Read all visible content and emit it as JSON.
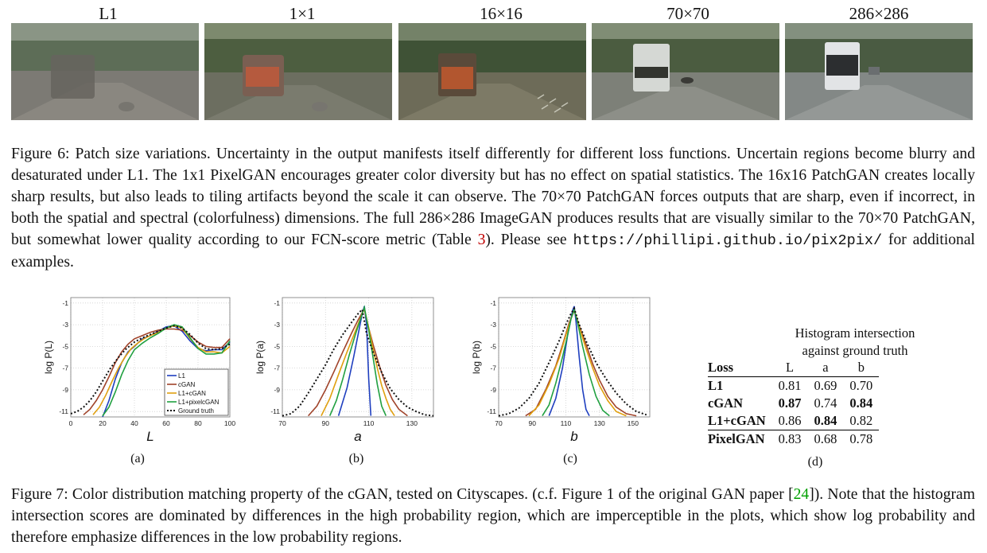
{
  "figure6": {
    "panels": [
      {
        "label": "L1",
        "tone": "#7c7a74"
      },
      {
        "label": "1×1",
        "tone": "#6c6e60"
      },
      {
        "label": "16×16",
        "tone": "#6d6b58"
      },
      {
        "label": "70×70",
        "tone": "#7d8078"
      },
      {
        "label": "286×286",
        "tone": "#838886"
      }
    ],
    "caption_main": "Figure 6: Patch size variations. Uncertainty in the output manifests itself differently for different loss functions. Uncertain regions become blurry and desaturated under L1. The 1x1 PixelGAN encourages greater color diversity but has no effect on spatial statistics. The 16x16 PatchGAN creates locally sharp results, but also leads to tiling artifacts beyond the scale it can observe. The 70×70 PatchGAN forces outputs that are sharp, even if incorrect, in both the spatial and spectral (colorfulness) dimensions. The full 286×286 ImageGAN produces results that are visually similar to the 70×70 PatchGAN, but somewhat lower quality according to our FCN-score metric (Table ",
    "caption_ref": "3",
    "caption_after_ref": "). Please see ",
    "caption_url": "https://phillipi.github.io/pix2pix/",
    "caption_end": " for additional examples."
  },
  "chart_data": [
    {
      "type": "line",
      "id": "a",
      "xlabel": "L",
      "ylabel": "log P(L)",
      "sublabel": "(a)",
      "xlim": [
        0,
        100
      ],
      "ylim": [
        -11.5,
        -0.5
      ],
      "xticks": [
        0,
        20,
        40,
        60,
        80,
        100
      ],
      "yticks": [
        -1,
        -3,
        -5,
        -7,
        -9,
        -11
      ],
      "legend": [
        "L1",
        "cGAN",
        "L1+cGAN",
        "L1+pixelcGAN",
        "Ground truth"
      ],
      "series": [
        {
          "name": "L1",
          "color": "#1f3fbf",
          "x": [
            20,
            24,
            28,
            32,
            36,
            40,
            45,
            50,
            55,
            60,
            65,
            70,
            75,
            80,
            85,
            90,
            95,
            100
          ],
          "y": [
            -11.5,
            -10,
            -8,
            -6.5,
            -5.5,
            -5,
            -4.3,
            -4,
            -3.6,
            -3.2,
            -3.1,
            -3.6,
            -4.5,
            -5.2,
            -5.4,
            -5.3,
            -5.3,
            -4.6
          ]
        },
        {
          "name": "cGAN",
          "color": "#a0432a",
          "x": [
            8,
            12,
            16,
            20,
            24,
            28,
            32,
            36,
            40,
            45,
            50,
            55,
            60,
            65,
            70,
            75,
            80,
            85,
            90,
            95,
            100
          ],
          "y": [
            -11.3,
            -10.8,
            -10,
            -9,
            -7.8,
            -6.5,
            -5.5,
            -4.8,
            -4.3,
            -4,
            -3.7,
            -3.5,
            -3.4,
            -3.4,
            -3.5,
            -4,
            -4.6,
            -5,
            -5.1,
            -5.1,
            -4.3
          ]
        },
        {
          "name": "L1+cGAN",
          "color": "#e0a010",
          "x": [
            14,
            18,
            22,
            26,
            30,
            34,
            38,
            42,
            46,
            50,
            55,
            60,
            65,
            70,
            75,
            80,
            85,
            90,
            95,
            100
          ],
          "y": [
            -11.3,
            -10.6,
            -9.5,
            -8.2,
            -7,
            -6,
            -5.2,
            -4.7,
            -4.3,
            -4,
            -3.7,
            -3.3,
            -3.1,
            -3.3,
            -4.3,
            -5.1,
            -5.5,
            -5.5,
            -5.6,
            -5
          ]
        },
        {
          "name": "L1+pixelcGAN",
          "color": "#20a040",
          "x": [
            20,
            24,
            28,
            32,
            36,
            40,
            45,
            50,
            55,
            60,
            65,
            70,
            75,
            80,
            85,
            90,
            95,
            100
          ],
          "y": [
            -11.4,
            -10.6,
            -9.2,
            -7.6,
            -6.3,
            -5.3,
            -4.7,
            -4.2,
            -3.8,
            -3.3,
            -3,
            -3.2,
            -4.2,
            -5.2,
            -5.7,
            -5.7,
            -5.6,
            -4.5
          ]
        },
        {
          "name": "Ground truth",
          "color": "#111111",
          "dashed": true,
          "x": [
            0,
            4,
            8,
            12,
            16,
            20,
            25,
            30,
            35,
            40,
            45,
            50,
            55,
            60,
            65,
            70,
            75,
            80,
            85,
            90,
            95,
            100
          ],
          "y": [
            -11.2,
            -11,
            -10.6,
            -10,
            -9.2,
            -8.2,
            -7,
            -6,
            -5.2,
            -4.6,
            -4.2,
            -3.9,
            -3.6,
            -3.3,
            -3.1,
            -3.3,
            -3.9,
            -4.7,
            -5.2,
            -5.3,
            -5.2,
            -4.8
          ]
        }
      ]
    },
    {
      "type": "line",
      "id": "b",
      "xlabel": "a",
      "ylabel": "log P(a)",
      "sublabel": "(b)",
      "xlim": [
        70,
        140
      ],
      "ylim": [
        -11.5,
        -0.5
      ],
      "xticks": [
        70,
        90,
        110,
        130
      ],
      "yticks": [
        -1,
        -3,
        -5,
        -7,
        -9,
        -11
      ],
      "series": [
        {
          "name": "L1",
          "color": "#1f3fbf",
          "x": [
            96,
            100,
            103,
            105,
            106,
            107,
            108,
            109,
            110,
            111
          ],
          "y": [
            -11.4,
            -8.8,
            -6,
            -4,
            -3,
            -2,
            -1.3,
            -3,
            -8,
            -11.4
          ]
        },
        {
          "name": "cGAN",
          "color": "#a0432a",
          "x": [
            82,
            86,
            90,
            94,
            98,
            102,
            105,
            107,
            108,
            110,
            112,
            115,
            118,
            121,
            124,
            128
          ],
          "y": [
            -11.4,
            -10.5,
            -9,
            -7.3,
            -5.5,
            -3.8,
            -2.6,
            -1.9,
            -1.6,
            -3.3,
            -4.8,
            -6.8,
            -8.6,
            -9.9,
            -10.8,
            -11.4
          ]
        },
        {
          "name": "L1+cGAN",
          "color": "#e0a010",
          "x": [
            88,
            92,
            96,
            100,
            103,
            106,
            108,
            110,
            112,
            114,
            116,
            118,
            120,
            122
          ],
          "y": [
            -11.4,
            -9.8,
            -7.6,
            -5.5,
            -4,
            -2.5,
            -1.5,
            -3.3,
            -5.2,
            -7,
            -8.6,
            -9.8,
            -10.8,
            -11.4
          ]
        },
        {
          "name": "L1+pixelcGAN",
          "color": "#20a040",
          "x": [
            92,
            95,
            98,
            101,
            104,
            106,
            108,
            110,
            112,
            114,
            116,
            118
          ],
          "y": [
            -11.4,
            -10,
            -8,
            -5.8,
            -3.8,
            -2.6,
            -1.4,
            -3.5,
            -6,
            -8.5,
            -10.5,
            -11.4
          ]
        },
        {
          "name": "Ground truth",
          "color": "#111111",
          "dashed": true,
          "x": [
            70,
            74,
            78,
            82,
            86,
            90,
            94,
            98,
            102,
            105,
            107,
            109,
            112,
            116,
            120,
            124,
            128,
            132,
            136,
            140
          ],
          "y": [
            -11.4,
            -11.2,
            -10.5,
            -9.3,
            -8,
            -6.7,
            -5.2,
            -3.9,
            -2.8,
            -2,
            -1.6,
            -3.8,
            -5.5,
            -7.4,
            -8.9,
            -9.9,
            -10.6,
            -11,
            -11.3,
            -11.4
          ]
        }
      ]
    },
    {
      "type": "line",
      "id": "c",
      "xlabel": "b",
      "ylabel": "log P(b)",
      "sublabel": "(c)",
      "xlim": [
        70,
        160
      ],
      "ylim": [
        -11.5,
        -0.5
      ],
      "xticks": [
        70,
        90,
        110,
        130,
        150
      ],
      "yticks": [
        -1,
        -3,
        -5,
        -7,
        -9,
        -11
      ],
      "series": [
        {
          "name": "L1",
          "color": "#1f3fbf",
          "x": [
            100,
            104,
            108,
            111,
            113,
            114,
            115,
            116,
            118,
            120,
            122,
            124
          ],
          "y": [
            -11.4,
            -9.8,
            -7,
            -4,
            -2.5,
            -1.7,
            -1.3,
            -2.6,
            -6,
            -9,
            -10.8,
            -11.4
          ]
        },
        {
          "name": "cGAN",
          "color": "#a0432a",
          "x": [
            86,
            92,
            98,
            104,
            108,
            112,
            115,
            118,
            122,
            126,
            130,
            135,
            140,
            146,
            152
          ],
          "y": [
            -11.4,
            -10.8,
            -9,
            -6.8,
            -4.9,
            -2.8,
            -1.7,
            -3.1,
            -4.8,
            -6.6,
            -8.1,
            -9.6,
            -10.6,
            -11.2,
            -11.4
          ]
        },
        {
          "name": "L1+cGAN",
          "color": "#e0a010",
          "x": [
            88,
            94,
            100,
            106,
            110,
            113,
            115,
            118,
            122,
            126,
            130,
            135,
            140,
            146
          ],
          "y": [
            -11.4,
            -10.4,
            -8.5,
            -6.1,
            -4,
            -2.5,
            -1.6,
            -3.2,
            -5.2,
            -7,
            -8.6,
            -10,
            -11,
            -11.4
          ]
        },
        {
          "name": "L1+pixelcGAN",
          "color": "#20a040",
          "x": [
            96,
            100,
            104,
            108,
            111,
            113,
            115,
            117,
            120,
            124,
            128,
            132,
            136
          ],
          "y": [
            -11.4,
            -10.4,
            -8.4,
            -6,
            -4,
            -2.5,
            -1.6,
            -2.8,
            -5,
            -7.6,
            -9.6,
            -10.9,
            -11.4
          ]
        },
        {
          "name": "Ground truth",
          "color": "#111111",
          "dashed": true,
          "x": [
            70,
            76,
            82,
            88,
            94,
            100,
            106,
            110,
            113,
            115,
            118,
            122,
            128,
            134,
            140,
            146,
            152,
            158
          ],
          "y": [
            -11.4,
            -11.2,
            -10.7,
            -9.8,
            -8.4,
            -6.5,
            -4.5,
            -3,
            -2,
            -1.5,
            -3,
            -4.5,
            -6.5,
            -8,
            -9.3,
            -10.3,
            -11,
            -11.3
          ]
        }
      ]
    },
    {
      "type": "table",
      "id": "d",
      "sublabel": "(d)",
      "title_line1": "Histogram intersection",
      "title_line2": "against ground truth",
      "columns": [
        "Loss",
        "L",
        "a",
        "b"
      ],
      "rows": [
        {
          "loss": "L1",
          "values": [
            "0.81",
            "0.69",
            "0.70"
          ],
          "bold": [
            false,
            false,
            false
          ]
        },
        {
          "loss": "cGAN",
          "values": [
            "0.87",
            "0.74",
            "0.84"
          ],
          "bold": [
            true,
            false,
            true
          ]
        },
        {
          "loss": "L1+cGAN",
          "values": [
            "0.86",
            "0.84",
            "0.82"
          ],
          "bold": [
            false,
            true,
            false
          ]
        },
        {
          "loss": "PixelGAN",
          "values": [
            "0.83",
            "0.68",
            "0.78"
          ],
          "bold": [
            false,
            false,
            false
          ]
        }
      ]
    }
  ],
  "figure7": {
    "caption_start": "Figure 7: Color distribution matching property of the cGAN, tested on Cityscapes. (c.f. Figure 1 of the original GAN paper [",
    "caption_ref": "24",
    "caption_end": "]). Note that the histogram intersection scores are dominated by differences in the high probability region, which are imperceptible in the plots, which show log probability and therefore emphasize differences in the low probability regions."
  }
}
